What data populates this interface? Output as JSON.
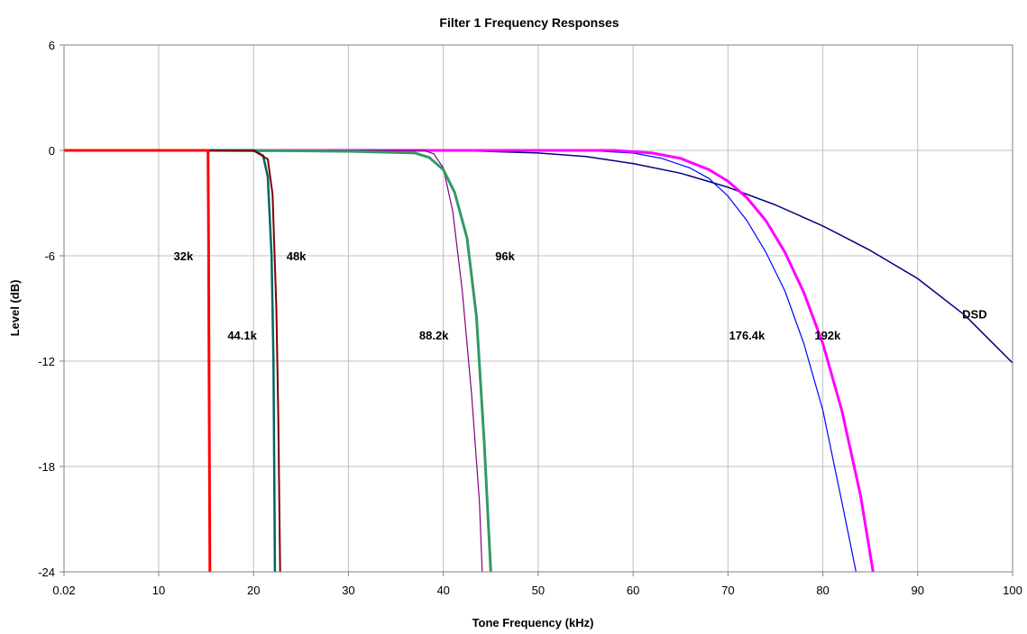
{
  "chart_data": {
    "type": "line",
    "title": "Filter 1 Frequency Responses",
    "xlabel": "Tone Frequency (kHz)",
    "ylabel": "Level (dB)",
    "xlim": [
      0.02,
      100
    ],
    "ylim": [
      -24,
      6
    ],
    "x_ticks": [
      0.02,
      10,
      20,
      30,
      40,
      50,
      60,
      70,
      80,
      90,
      100
    ],
    "x_tick_labels": [
      "0.02",
      "10",
      "20",
      "30",
      "40",
      "50",
      "60",
      "70",
      "80",
      "90",
      "100"
    ],
    "y_ticks": [
      6,
      0,
      -6,
      -12,
      -18,
      -24
    ],
    "y_tick_labels": [
      "6",
      "0",
      "-6",
      "-12",
      "-18",
      "-24"
    ],
    "grid": true,
    "legend": "none",
    "series": [
      {
        "name": "DSD",
        "color": "#000080",
        "width": 1.5,
        "points": [
          [
            0.02,
            0
          ],
          [
            20,
            -0.05
          ],
          [
            40,
            0.02
          ],
          [
            50,
            -0.15
          ],
          [
            55,
            -0.35
          ],
          [
            60,
            -0.75
          ],
          [
            65,
            -1.3
          ],
          [
            70,
            -2.1
          ],
          [
            75,
            -3.1
          ],
          [
            80,
            -4.3
          ],
          [
            85,
            -5.7
          ],
          [
            90,
            -7.3
          ],
          [
            95,
            -9.4
          ],
          [
            100,
            -12.1
          ]
        ]
      },
      {
        "name": "176.4k",
        "color": "#0000ff",
        "width": 1.2,
        "points": [
          [
            0.02,
            0
          ],
          [
            30,
            0
          ],
          [
            55,
            0
          ],
          [
            60,
            -0.15
          ],
          [
            63,
            -0.45
          ],
          [
            66,
            -1.0
          ],
          [
            68,
            -1.6
          ],
          [
            70,
            -2.6
          ],
          [
            72,
            -4.0
          ],
          [
            74,
            -5.8
          ],
          [
            76,
            -8.0
          ],
          [
            78,
            -11.0
          ],
          [
            80,
            -14.8
          ],
          [
            82,
            -20.0
          ],
          [
            83.5,
            -24
          ]
        ]
      },
      {
        "name": "192k",
        "color": "#ff00ff",
        "width": 3,
        "points": [
          [
            0.02,
            0
          ],
          [
            30,
            0
          ],
          [
            58,
            0
          ],
          [
            62,
            -0.15
          ],
          [
            65,
            -0.45
          ],
          [
            68,
            -1.1
          ],
          [
            70,
            -1.75
          ],
          [
            72,
            -2.7
          ],
          [
            74,
            -4.0
          ],
          [
            76,
            -5.8
          ],
          [
            78,
            -8.1
          ],
          [
            80,
            -11.0
          ],
          [
            82,
            -14.8
          ],
          [
            84,
            -19.7
          ],
          [
            85.3,
            -24
          ]
        ]
      },
      {
        "name": "88.2k",
        "color": "#800080",
        "width": 1.2,
        "points": [
          [
            0.02,
            0
          ],
          [
            38,
            0
          ],
          [
            39,
            -0.2
          ],
          [
            40,
            -1.0
          ],
          [
            41,
            -3.5
          ],
          [
            42,
            -8.0
          ],
          [
            43,
            -14.0
          ],
          [
            43.8,
            -20.0
          ],
          [
            44.1,
            -24
          ]
        ]
      },
      {
        "name": "96k",
        "color": "#339966",
        "width": 3,
        "points": [
          [
            0.02,
            0
          ],
          [
            20,
            0
          ],
          [
            30,
            -0.05
          ],
          [
            37,
            -0.15
          ],
          [
            38.5,
            -0.4
          ],
          [
            40,
            -1.1
          ],
          [
            41.2,
            -2.4
          ],
          [
            42.5,
            -5.0
          ],
          [
            43.5,
            -9.5
          ],
          [
            44.3,
            -16.5
          ],
          [
            45.0,
            -24
          ]
        ]
      },
      {
        "name": "44.1k",
        "color": "#006666",
        "width": 2.5,
        "points": [
          [
            0.02,
            0
          ],
          [
            20,
            0
          ],
          [
            21,
            -0.3
          ],
          [
            21.5,
            -1.5
          ],
          [
            21.9,
            -6.0
          ],
          [
            22.1,
            -12.0
          ],
          [
            22.2,
            -20.0
          ],
          [
            22.25,
            -24
          ]
        ]
      },
      {
        "name": "48k",
        "color": "#800000",
        "width": 2,
        "points": [
          [
            0.02,
            0
          ],
          [
            20,
            0
          ],
          [
            21.5,
            -0.5
          ],
          [
            22,
            -2.5
          ],
          [
            22.4,
            -9.0
          ],
          [
            22.6,
            -15.0
          ],
          [
            22.8,
            -24
          ]
        ]
      },
      {
        "name": "32k",
        "color": "#ff0000",
        "width": 3,
        "points": [
          [
            0.02,
            0
          ],
          [
            15.2,
            0
          ],
          [
            15.25,
            -5
          ],
          [
            15.3,
            -12
          ],
          [
            15.4,
            -24
          ]
        ]
      }
    ],
    "annotations": [
      {
        "text": "32k",
        "x": 12.6,
        "y": -6.0
      },
      {
        "text": "48k",
        "x": 24.5,
        "y": -6.0
      },
      {
        "text": "44.1k",
        "x": 18.8,
        "y": -10.5
      },
      {
        "text": "88.2k",
        "x": 39.0,
        "y": -10.5
      },
      {
        "text": "96k",
        "x": 46.5,
        "y": -6.0
      },
      {
        "text": "176.4k",
        "x": 72.0,
        "y": -10.5
      },
      {
        "text": "192k",
        "x": 80.5,
        "y": -10.5
      },
      {
        "text": "DSD",
        "x": 96.0,
        "y": -9.3
      }
    ]
  }
}
